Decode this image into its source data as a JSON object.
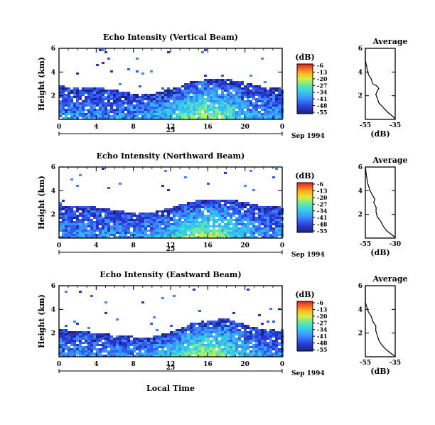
{
  "chart_data": [
    {
      "type": "heatmap",
      "title": "Echo Intensity (Vertical Beam)",
      "ylabel": "Height (km)",
      "x_ticks": [
        "0",
        "4",
        "8",
        "12",
        "16",
        "20",
        "0"
      ],
      "x_day": "25",
      "x_suffix": "Sep 1994",
      "y_ticks": [
        "6",
        "4",
        "2"
      ],
      "xlim": [
        0,
        24
      ],
      "ylim": [
        0,
        6
      ],
      "colorbar": {
        "unit": "(dB)",
        "ticks": [
          "-6",
          "-13",
          "-20",
          "-27",
          "-34",
          "-41",
          "-48",
          "-55"
        ]
      },
      "top_boundary_km": [
        [
          0,
          2.8
        ],
        [
          4,
          2.7
        ],
        [
          8,
          2.2
        ],
        [
          10,
          2.2
        ],
        [
          12,
          2.6
        ],
        [
          14,
          3.2
        ],
        [
          16,
          3.4
        ],
        [
          18,
          3.4
        ],
        [
          20,
          3.1
        ],
        [
          22,
          2.7
        ],
        [
          24,
          2.6
        ]
      ]
    },
    {
      "type": "line",
      "title": "Average",
      "xlabel": "(dB)",
      "x_ticks": [
        "-55",
        "-35"
      ],
      "y_ticks": [
        "6",
        "4",
        "2"
      ],
      "xlim": [
        -55,
        -35
      ],
      "ylim": [
        0,
        6
      ],
      "profile": [
        [
          0.05,
          -35
        ],
        [
          0.3,
          -37
        ],
        [
          0.6,
          -40
        ],
        [
          1.0,
          -43
        ],
        [
          1.4,
          -46
        ],
        [
          1.8,
          -47
        ],
        [
          2.1,
          -48
        ],
        [
          2.4,
          -47
        ],
        [
          2.6,
          -46
        ],
        [
          2.8,
          -47
        ],
        [
          3.0,
          -50
        ],
        [
          3.4,
          -51
        ],
        [
          3.8,
          -53
        ],
        [
          4.4,
          -54
        ],
        [
          5.0,
          -55
        ],
        [
          5.6,
          -55
        ],
        [
          6.0,
          -55
        ]
      ]
    },
    {
      "type": "heatmap",
      "title": "Echo Intensity (Northward Beam)",
      "ylabel": "Height (km)",
      "x_ticks": [
        "0",
        "4",
        "8",
        "12",
        "16",
        "20",
        "0"
      ],
      "x_day": "25",
      "x_suffix": "Sep 1994",
      "y_ticks": [
        "6",
        "4",
        "2"
      ],
      "xlim": [
        0,
        24
      ],
      "ylim": [
        0,
        6
      ],
      "colorbar": {
        "unit": "(dB)",
        "ticks": [
          "-6",
          "-13",
          "-20",
          "-27",
          "-34",
          "-41",
          "-48",
          "-55"
        ]
      },
      "top_boundary_km": [
        [
          0,
          2.8
        ],
        [
          4,
          2.6
        ],
        [
          8,
          2.1
        ],
        [
          10,
          2.2
        ],
        [
          12,
          2.6
        ],
        [
          14,
          3.1
        ],
        [
          16,
          3.3
        ],
        [
          18,
          3.3
        ],
        [
          20,
          3.0
        ],
        [
          22,
          2.7
        ],
        [
          24,
          2.6
        ]
      ]
    },
    {
      "type": "line",
      "title": "Average",
      "xlabel": "(dB)",
      "x_ticks": [
        "-55",
        "-30"
      ],
      "y_ticks": [
        "6",
        "4",
        "2"
      ],
      "xlim": [
        -55,
        -30
      ],
      "ylim": [
        0,
        6
      ],
      "profile": [
        [
          0.05,
          -30
        ],
        [
          0.3,
          -33
        ],
        [
          0.6,
          -37
        ],
        [
          1.0,
          -40
        ],
        [
          1.4,
          -42
        ],
        [
          1.8,
          -45
        ],
        [
          2.2,
          -46
        ],
        [
          2.6,
          -46
        ],
        [
          3.0,
          -48
        ],
        [
          3.3,
          -47
        ],
        [
          3.6,
          -49
        ],
        [
          4.0,
          -51
        ],
        [
          4.6,
          -53
        ],
        [
          5.2,
          -54
        ],
        [
          6.0,
          -55
        ]
      ]
    },
    {
      "type": "heatmap",
      "title": "Echo Intensity (Eastward Beam)",
      "ylabel": "Height (km)",
      "xlabel": "Local Time",
      "x_ticks": [
        "0",
        "4",
        "8",
        "12",
        "16",
        "20",
        "0"
      ],
      "x_day": "25",
      "x_suffix": "Sep 1994",
      "y_ticks": [
        "6",
        "4",
        "2"
      ],
      "xlim": [
        0,
        24
      ],
      "ylim": [
        0,
        6
      ],
      "colorbar": {
        "unit": "(dB)",
        "ticks": [
          "-6",
          "-13",
          "-20",
          "-27",
          "-34",
          "-41",
          "-48",
          "-55"
        ]
      },
      "top_boundary_km": [
        [
          0,
          2.3
        ],
        [
          4,
          2.0
        ],
        [
          8,
          1.7
        ],
        [
          10,
          1.7
        ],
        [
          12,
          2.1
        ],
        [
          14,
          2.8
        ],
        [
          16,
          3.1
        ],
        [
          18,
          3.2
        ],
        [
          20,
          2.7
        ],
        [
          22,
          2.3
        ],
        [
          24,
          2.2
        ]
      ]
    },
    {
      "type": "line",
      "title": "Average",
      "xlabel": "(dB)",
      "x_ticks": [
        "-55",
        "-35"
      ],
      "y_ticks": [
        "6",
        "4",
        "2"
      ],
      "xlim": [
        -55,
        -35
      ],
      "ylim": [
        0,
        6
      ],
      "profile": [
        [
          0.05,
          -35
        ],
        [
          0.3,
          -38
        ],
        [
          0.6,
          -41
        ],
        [
          1.0,
          -44
        ],
        [
          1.4,
          -46
        ],
        [
          1.8,
          -47
        ],
        [
          2.2,
          -48
        ],
        [
          2.6,
          -48
        ],
        [
          3.0,
          -50
        ],
        [
          3.4,
          -51
        ],
        [
          3.8,
          -53
        ],
        [
          4.2,
          -54
        ],
        [
          4.6,
          -55
        ],
        [
          5.2,
          -55
        ],
        [
          6.0,
          -55
        ]
      ]
    }
  ]
}
